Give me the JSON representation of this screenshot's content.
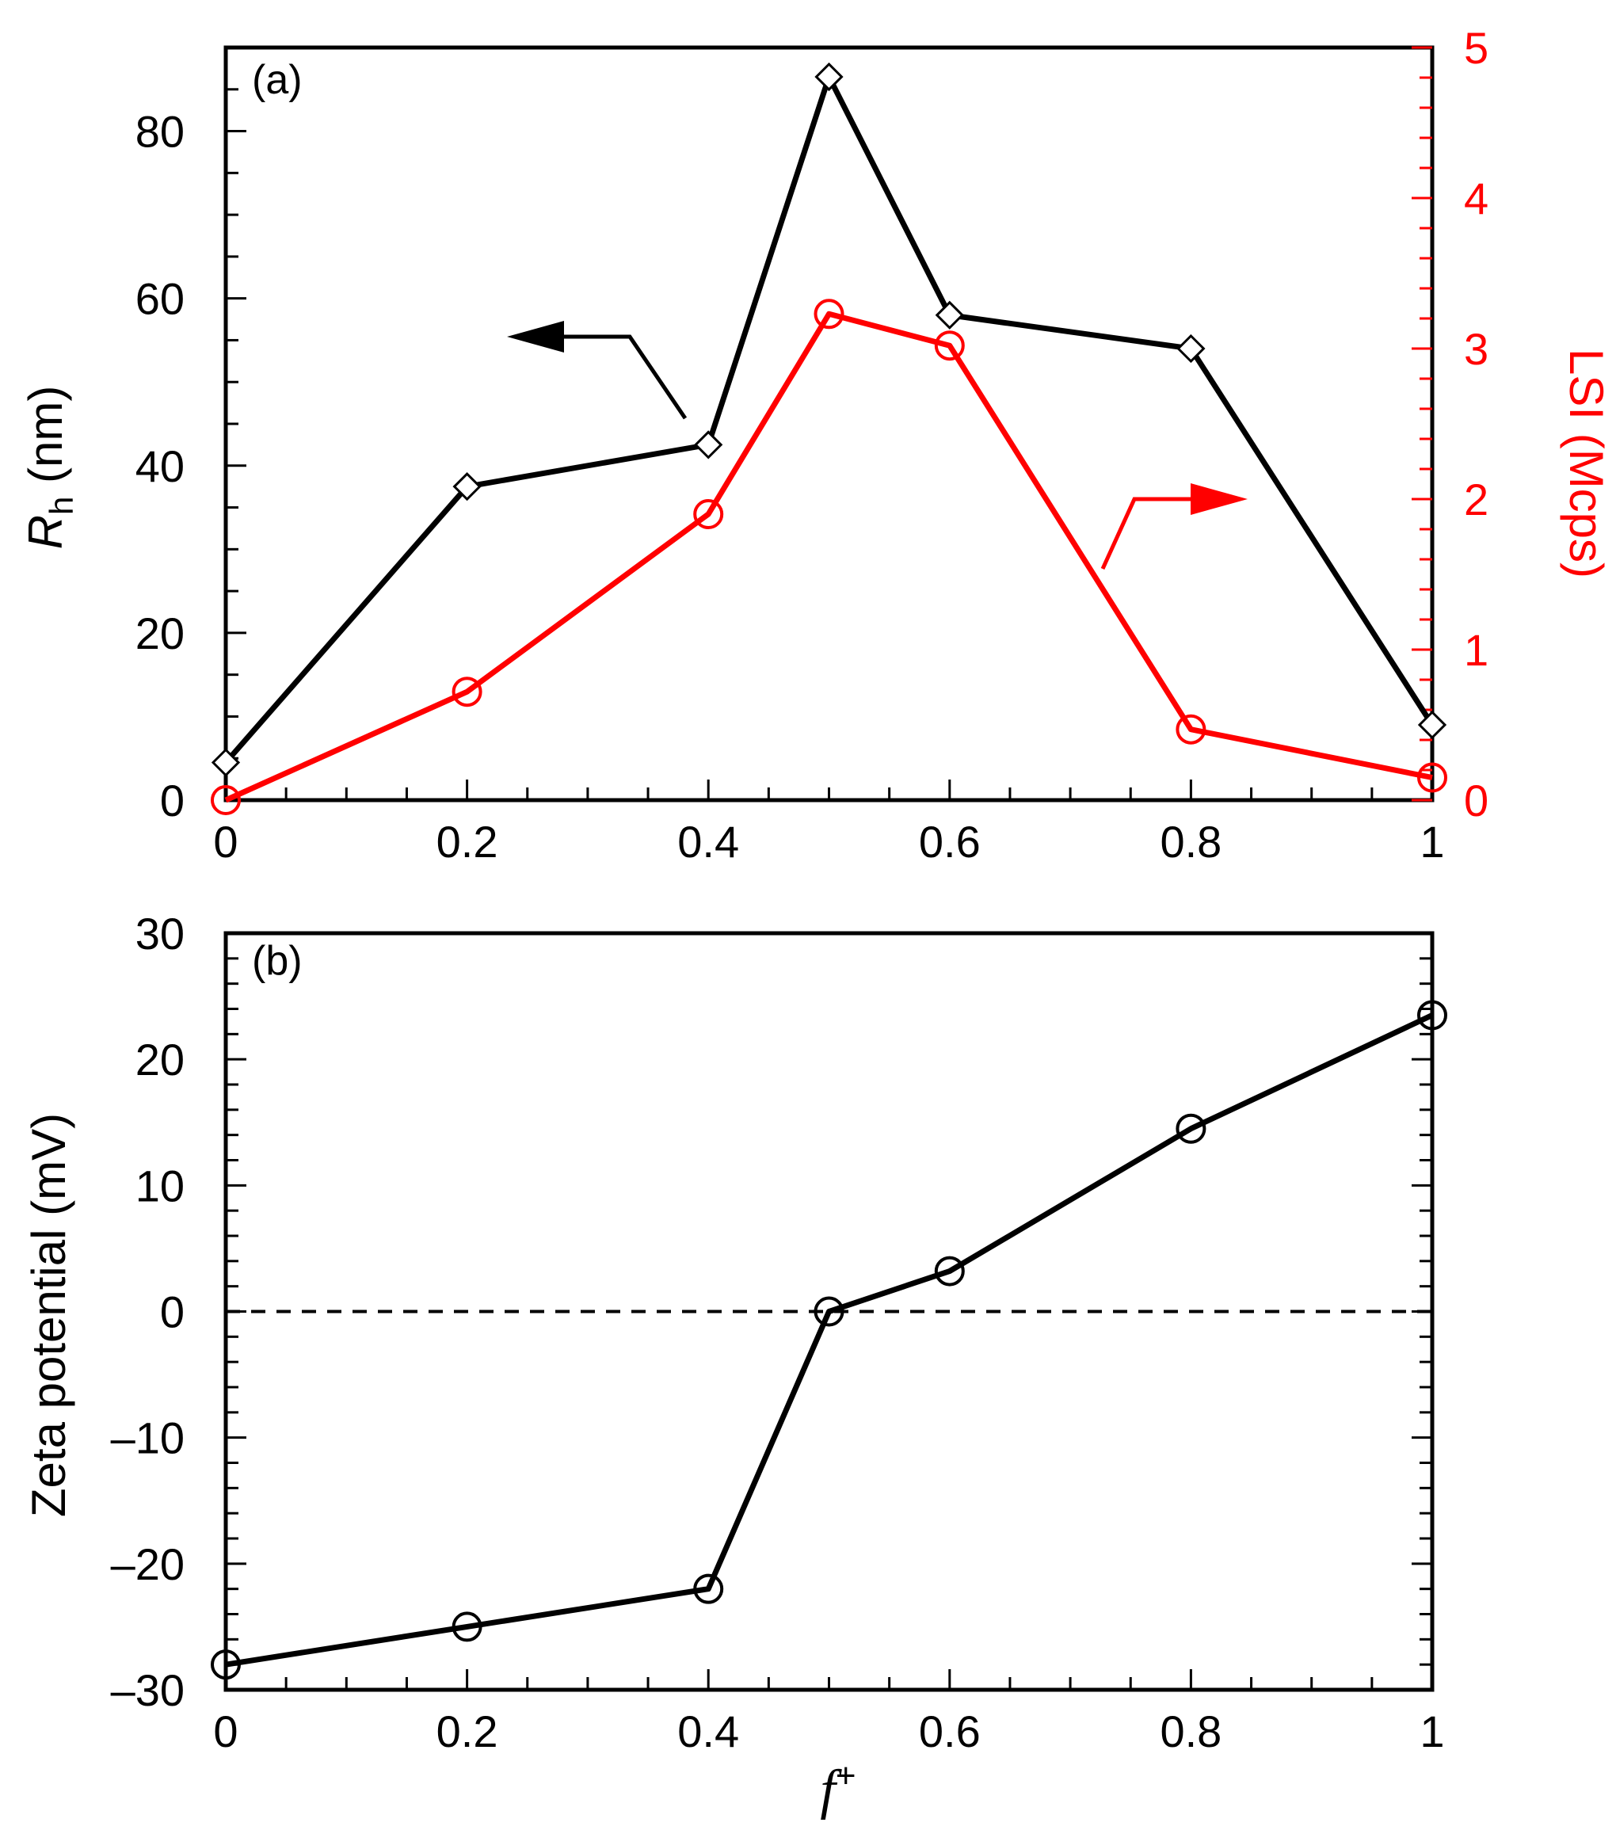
{
  "chart_data": [
    {
      "type": "line",
      "panel_label": "(a)",
      "x": [
        0,
        0.2,
        0.4,
        0.5,
        0.6,
        0.8,
        1
      ],
      "xlim": [
        0,
        1
      ],
      "xticks": [
        0,
        0.2,
        0.4,
        0.6,
        0.8,
        1
      ],
      "xtick_labels": [
        "0",
        "0.2",
        "0.4",
        "0.6",
        "0.8",
        "1"
      ],
      "series": [
        {
          "name": "Rh",
          "axis": "left",
          "marker": "diamond",
          "color": "#000000",
          "values": [
            4.5,
            37.5,
            42.5,
            86.5,
            58.0,
            54.0,
            9.0
          ]
        },
        {
          "name": "LSI",
          "axis": "right",
          "marker": "circle",
          "color": "#ff0000",
          "values": [
            0.0,
            0.72,
            1.9,
            3.23,
            3.02,
            0.47,
            0.15
          ]
        }
      ],
      "ylabel_left_main": "R",
      "ylabel_left_sub": "h",
      "ylabel_left_unit": " (nm)",
      "ylim_left": [
        0,
        90
      ],
      "yticks_left": [
        0,
        20,
        40,
        60,
        80
      ],
      "ytick_labels_left": [
        "0",
        "20",
        "40",
        "60",
        "80"
      ],
      "ylabel_right": "LSI (Mcps)",
      "ylim_right": [
        0,
        5
      ],
      "yticks_right": [
        0,
        1,
        2,
        3,
        4,
        5
      ],
      "ytick_labels_right": [
        "0",
        "1",
        "2",
        "3",
        "4",
        "5"
      ],
      "annotations": [
        "arrow pointing to left axis (black)",
        "arrow pointing to right axis (red)"
      ]
    },
    {
      "type": "line",
      "panel_label": "(b)",
      "x": [
        0,
        0.2,
        0.4,
        0.5,
        0.6,
        0.8,
        1
      ],
      "xlim": [
        0,
        1
      ],
      "xticks": [
        0,
        0.2,
        0.4,
        0.6,
        0.8,
        1
      ],
      "xtick_labels": [
        "0",
        "0.2",
        "0.4",
        "0.6",
        "0.8",
        "1"
      ],
      "series": [
        {
          "name": "Zeta potential",
          "marker": "circle",
          "color": "#000000",
          "values": [
            -28.0,
            -25.0,
            -22.0,
            0.0,
            3.2,
            14.5,
            23.5
          ]
        }
      ],
      "reference_line": 0,
      "ylabel": "Zeta potential (mV)",
      "ylim": [
        -30,
        30
      ],
      "yticks": [
        -30,
        -20,
        -10,
        0,
        10,
        20,
        30
      ],
      "ytick_labels": [
        "–30",
        "–20",
        "–10",
        "0",
        "10",
        "20",
        "30"
      ],
      "xlabel_main": "f",
      "xlabel_sup": "+"
    }
  ]
}
